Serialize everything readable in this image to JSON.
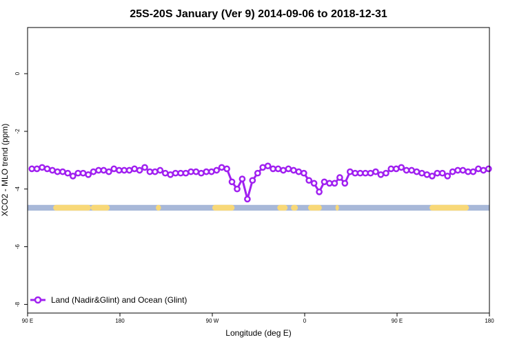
{
  "chart_data": {
    "type": "line",
    "title": "25S-20S January (Ver 9)   2014-09-06 to 2018-12-31",
    "xlabel": "Longitude (deg E)",
    "ylabel": "XCO2 - MLO trend (ppm)",
    "xlim": [
      -90,
      180
    ],
    "ylim": [
      -8.3,
      1.6
    ],
    "x_ticks": [
      {
        "value": -90,
        "label": "90 E"
      },
      {
        "value": -36,
        "label": "180"
      },
      {
        "value": 18,
        "label": "90 W"
      },
      {
        "value": 72,
        "label": "0"
      },
      {
        "value": 126,
        "label": "90 E"
      },
      {
        "value": 180,
        "label": "180"
      }
    ],
    "y_ticks": [
      {
        "value": 0,
        "label": "0"
      },
      {
        "value": -2,
        "label": "-2"
      },
      {
        "value": -4,
        "label": "-4"
      },
      {
        "value": -6,
        "label": "-6"
      },
      {
        "value": -8,
        "label": "-8"
      }
    ],
    "grid": false,
    "legend_position": "bottom-left",
    "series": [
      {
        "name": "Land (Nadir&Glint) and Ocean (Glint)",
        "color": "#a020f0",
        "x": [
          -87.5,
          -84.5,
          -81.5,
          -78.5,
          -75.5,
          -72.5,
          -69.5,
          -66.5,
          -63.5,
          -60.5,
          -57.5,
          -54.5,
          -51.5,
          -48.5,
          -45.5,
          -42.5,
          -39.5,
          -36.5,
          -33.5,
          -30.5,
          -27.5,
          -24.5,
          -21.5,
          -18.5,
          -15.5,
          -12.5,
          -9.5,
          -6.5,
          -3.5,
          -0.5,
          2.5,
          5.5,
          8.5,
          11.5,
          14.5,
          17.5,
          20.5,
          23.5,
          26.5,
          29.5,
          32.5,
          35.5,
          38.5,
          41.5,
          44.5,
          47.5,
          50.5,
          53.5,
          56.5,
          59.5,
          62.5,
          65.5,
          68.5,
          71.5,
          74.5,
          77.5,
          80.5,
          83.5,
          86.5,
          89.5,
          92.5,
          95.5,
          98.5,
          101.5,
          104.5,
          107.5,
          110.5,
          113.5,
          116.5,
          119.5,
          122.5,
          125.5,
          128.5,
          131.5,
          134.5,
          137.5,
          140.5,
          143.5,
          146.5,
          149.5,
          152.5,
          155.5,
          158.5,
          161.5,
          164.5,
          167.5,
          170.5,
          173.5,
          176.5,
          179.5
        ],
        "y": [
          -3.3,
          -3.3,
          -3.25,
          -3.3,
          -3.35,
          -3.4,
          -3.4,
          -3.45,
          -3.55,
          -3.45,
          -3.45,
          -3.5,
          -3.4,
          -3.35,
          -3.35,
          -3.4,
          -3.3,
          -3.35,
          -3.35,
          -3.35,
          -3.3,
          -3.35,
          -3.25,
          -3.4,
          -3.4,
          -3.35,
          -3.45,
          -3.5,
          -3.45,
          -3.45,
          -3.45,
          -3.4,
          -3.4,
          -3.45,
          -3.4,
          -3.4,
          -3.35,
          -3.25,
          -3.3,
          -3.75,
          -4.0,
          -3.65,
          -4.35,
          -3.7,
          -3.45,
          -3.25,
          -3.2,
          -3.3,
          -3.3,
          -3.35,
          -3.3,
          -3.35,
          -3.4,
          -3.45,
          -3.7,
          -3.8,
          -4.1,
          -3.75,
          -3.8,
          -3.8,
          -3.6,
          -3.8,
          -3.4,
          -3.45,
          -3.45,
          -3.45,
          -3.45,
          -3.4,
          -3.5,
          -3.45,
          -3.3,
          -3.3,
          -3.25,
          -3.35,
          -3.35,
          -3.4,
          -3.45,
          -3.5,
          -3.55,
          -3.45,
          -3.45,
          -3.55,
          -3.4,
          -3.35,
          -3.35,
          -3.4,
          -3.4,
          -3.3,
          -3.35,
          -3.3
        ]
      }
    ],
    "land_ocean_strip": {
      "y_range": [
        -4.75,
        -4.55
      ],
      "ocean_color": "#a8b8d8",
      "land_color": "#f8d878",
      "land_intervals_lon": [
        [
          -75,
          -53
        ],
        [
          -53,
          -42
        ],
        [
          18,
          31
        ],
        [
          -15,
          -12
        ],
        [
          56,
          62
        ],
        [
          64,
          68
        ],
        [
          74,
          82
        ],
        [
          90,
          92
        ],
        [
          145,
          168
        ]
      ]
    }
  }
}
